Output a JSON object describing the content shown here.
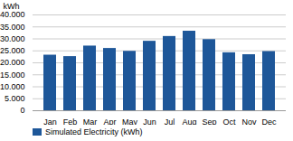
{
  "chart_data": {
    "type": "bar",
    "categories": [
      "Jan",
      "Feb",
      "Mar",
      "Apr",
      "May",
      "Jun",
      "Jul",
      "Aug",
      "Sep",
      "Oct",
      "Nov",
      "Dec"
    ],
    "series": [
      {
        "name": "Simulated Electricity (kWh)",
        "color": "#1E5799",
        "values": [
          23200,
          22600,
          27000,
          26000,
          24800,
          29000,
          31000,
          33200,
          29700,
          24200,
          23400,
          24700
        ]
      }
    ],
    "ylabel": "kWh",
    "ylim": [
      0,
      40000
    ],
    "yticks": [
      0,
      {
        "value": 5000,
        "label": "5.000"
      },
      {
        "value": 10000,
        "label": "10.000"
      },
      {
        "value": 15000,
        "label": "15.000"
      },
      {
        "value": 20000,
        "label": "20.000"
      },
      {
        "value": 25000,
        "label": "25.000"
      },
      {
        "value": 30000,
        "label": "30.000"
      },
      {
        "value": 35000,
        "label": "35.000"
      },
      {
        "value": 40000,
        "label": "40.000"
      }
    ],
    "grid": true,
    "legend": "lower left"
  }
}
